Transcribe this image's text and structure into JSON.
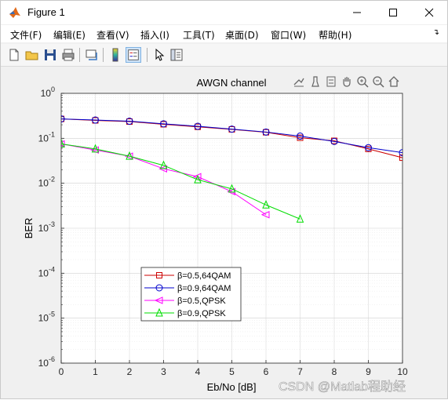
{
  "window": {
    "title": "Figure 1"
  },
  "menu": {
    "items": [
      "文件(F)",
      "编辑(E)",
      "查看(V)",
      "插入(I)",
      "工具(T)",
      "桌面(D)",
      "窗口(W)",
      "帮助(H)"
    ]
  },
  "icons": {
    "app": "matlab-icon",
    "minimize": "minimize-icon",
    "maximize": "maximize-icon",
    "close": "close-icon",
    "toolbar": [
      "new-figure-icon",
      "open-file-icon",
      "save-icon",
      "print-icon",
      "link-plot-icon",
      "colorbar-icon",
      "legend-icon",
      "pointer-icon",
      "property-inspector-icon"
    ],
    "axes_toolbar": [
      "export-icon",
      "brush-icon",
      "data-tip-icon",
      "pan-icon",
      "zoom-in-icon",
      "zoom-out-icon",
      "home-icon"
    ]
  },
  "chart_data": {
    "type": "line",
    "title": "AWGN channel",
    "xlabel": "Eb/No [dB]",
    "ylabel": "BER",
    "yscale": "log",
    "xlim": [
      0,
      10
    ],
    "ylim": [
      1e-06,
      1
    ],
    "xticks": [
      "0",
      "1",
      "2",
      "3",
      "4",
      "5",
      "6",
      "7",
      "8",
      "9",
      "10"
    ],
    "yticks": [
      {
        "base": "10",
        "exp": "0"
      },
      {
        "base": "10",
        "exp": "-1"
      },
      {
        "base": "10",
        "exp": "-2"
      },
      {
        "base": "10",
        "exp": "-3"
      },
      {
        "base": "10",
        "exp": "-4"
      },
      {
        "base": "10",
        "exp": "-5"
      },
      {
        "base": "10",
        "exp": "-6"
      }
    ],
    "grid": true,
    "legend_position": "lower-left",
    "series": [
      {
        "name": "β=0.5,64QAM",
        "color": "#cc0000",
        "marker": "square",
        "x": [
          0,
          1,
          2,
          3,
          4,
          5,
          6,
          7,
          8,
          9,
          10
        ],
        "y": [
          0.27,
          0.25,
          0.235,
          0.205,
          0.18,
          0.158,
          0.136,
          0.103,
          0.088,
          0.058,
          0.037
        ]
      },
      {
        "name": "β=0.9,64QAM",
        "color": "#0000cc",
        "marker": "circle",
        "x": [
          0,
          1,
          2,
          3,
          4,
          5,
          6,
          7,
          8,
          9,
          10
        ],
        "y": [
          0.27,
          0.255,
          0.24,
          0.21,
          0.185,
          0.16,
          0.138,
          0.112,
          0.085,
          0.062,
          0.048
        ]
      },
      {
        "name": "β=0.5,QPSK",
        "color": "#ff00ff",
        "marker": "triangle-left",
        "x": [
          0,
          1,
          2,
          3,
          4,
          5,
          6
        ],
        "y": [
          0.075,
          0.055,
          0.04,
          0.021,
          0.014,
          0.0065,
          0.002
        ]
      },
      {
        "name": "β=0.9,QPSK",
        "color": "#00dd00",
        "marker": "triangle-up",
        "x": [
          0,
          1,
          2,
          3,
          4,
          5,
          6,
          7
        ],
        "y": [
          0.075,
          0.058,
          0.04,
          0.025,
          0.012,
          0.0075,
          0.0033,
          0.0016
        ]
      }
    ]
  },
  "watermark": "CSDN @Matlab程助经"
}
